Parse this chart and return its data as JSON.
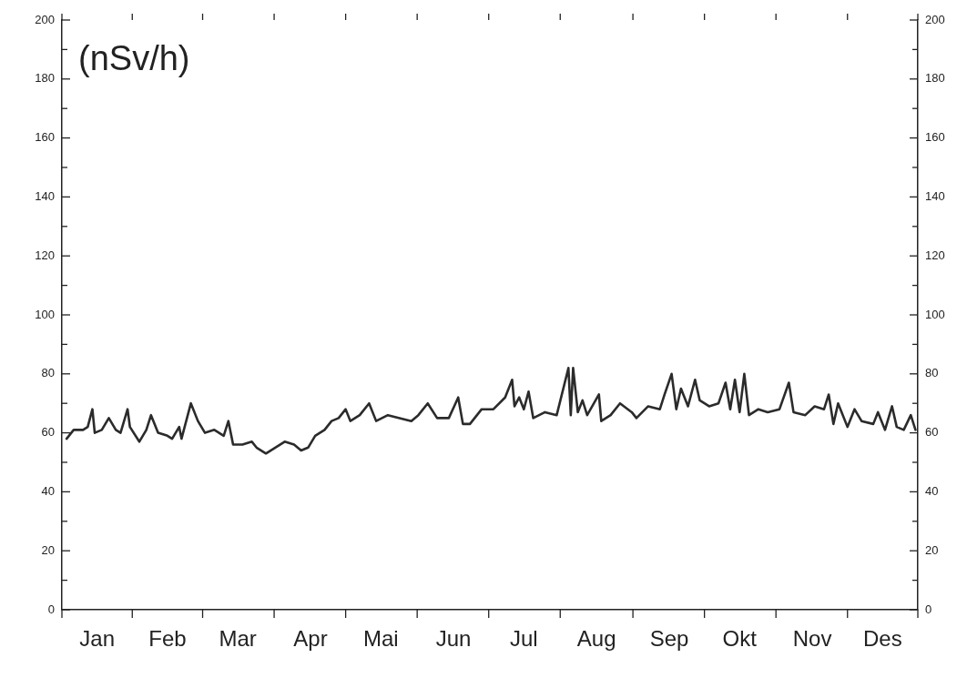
{
  "chart_data": {
    "type": "line",
    "ylabel": "(nSv/h)",
    "x": [
      "--01-03",
      "--01-06",
      "--01-10",
      "--01-12",
      "--01-14",
      "--01-15",
      "--01-18",
      "--01-21",
      "--01-24",
      "--01-26",
      "--01-29",
      "--01-30",
      "--02-03",
      "--02-06",
      "--02-08",
      "--02-11",
      "--02-15",
      "--02-17",
      "--02-20",
      "--02-21",
      "--02-25",
      "--02-28",
      "--03-02",
      "--03-06",
      "--03-10",
      "--03-12",
      "--03-14",
      "--03-18",
      "--03-22",
      "--03-24",
      "--03-28",
      "--04-01",
      "--04-05",
      "--04-09",
      "--04-12",
      "--04-15",
      "--04-18",
      "--04-22",
      "--04-25",
      "--04-28",
      "--05-01",
      "--05-03",
      "--05-05",
      "--05-07",
      "--05-11",
      "--05-14",
      "--05-19",
      "--05-24",
      "--05-29",
      "--06-01",
      "--06-05",
      "--06-09",
      "--06-14",
      "--06-18",
      "--06-20",
      "--06-23",
      "--06-28",
      "--07-03",
      "--07-08",
      "--07-11",
      "--07-12",
      "--07-14",
      "--07-16",
      "--07-18",
      "--07-20",
      "--07-25",
      "--07-30",
      "--08-04",
      "--08-05",
      "--08-06",
      "--08-08",
      "--08-10",
      "--08-12",
      "--08-17",
      "--08-18",
      "--08-22",
      "--08-26",
      "--08-31",
      "--09-02",
      "--09-07",
      "--09-12",
      "--09-14",
      "--09-17",
      "--09-19",
      "--09-21",
      "--09-24",
      "--09-27",
      "--09-29",
      "--10-03",
      "--10-07",
      "--10-10",
      "--10-12",
      "--10-14",
      "--10-16",
      "--10-18",
      "--10-20",
      "--10-24",
      "--10-28",
      "--11-02",
      "--11-06",
      "--11-08",
      "--11-13",
      "--11-17",
      "--11-21",
      "--11-23",
      "--11-25",
      "--11-27",
      "--12-01",
      "--12-04",
      "--12-07",
      "--12-12",
      "--12-14",
      "--12-17",
      "--12-20",
      "--12-22",
      "--12-25",
      "--12-28",
      "--12-30"
    ],
    "series": [
      {
        "color": "#2b2b2b",
        "values": [
          58,
          61,
          61,
          62,
          68,
          60,
          61,
          65,
          61,
          60,
          68,
          62,
          57,
          61,
          66,
          60,
          59,
          58,
          62,
          58,
          70,
          64,
          60,
          61,
          59,
          64,
          56,
          56,
          57,
          55,
          53,
          55,
          57,
          56,
          54,
          55,
          59,
          61,
          64,
          65,
          68,
          64,
          65,
          66,
          70,
          64,
          66,
          65,
          64,
          66,
          70,
          65,
          65,
          72,
          63,
          63,
          68,
          68,
          72,
          78,
          69,
          72,
          68,
          74,
          65,
          67,
          66,
          82,
          66,
          82,
          67,
          71,
          66,
          73,
          64,
          66,
          70,
          67,
          65,
          69,
          68,
          73,
          80,
          68,
          75,
          69,
          78,
          71,
          69,
          70,
          77,
          68,
          78,
          67,
          80,
          66,
          68,
          67,
          68,
          77,
          67,
          66,
          69,
          68,
          73,
          63,
          70,
          62,
          68,
          64,
          63,
          67,
          61,
          69,
          62,
          61,
          66,
          61
        ]
      }
    ],
    "xlim": [
      "--01-01",
      "--12-31"
    ],
    "xticks": [
      {
        "value": "--01-16",
        "label": "Jan"
      },
      {
        "value": "--02-15",
        "label": "Feb"
      },
      {
        "value": "--03-16",
        "label": "Mar"
      },
      {
        "value": "--04-16",
        "label": "Apr"
      },
      {
        "value": "--05-16",
        "label": "Mai"
      },
      {
        "value": "--06-16",
        "label": "Jun"
      },
      {
        "value": "--07-16",
        "label": "Jul"
      },
      {
        "value": "--08-16",
        "label": "Aug"
      },
      {
        "value": "--09-16",
        "label": "Sep"
      },
      {
        "value": "--10-16",
        "label": "Okt"
      },
      {
        "value": "--11-16",
        "label": "Nov"
      },
      {
        "value": "--12-16",
        "label": "Des"
      }
    ],
    "ylim": [
      0,
      200
    ],
    "yticks": [
      0,
      {
        "value": 10,
        "label": null
      },
      20,
      {
        "value": 30,
        "label": null
      },
      40,
      {
        "value": 50,
        "label": null
      },
      60,
      {
        "value": 70,
        "label": null
      },
      80,
      {
        "value": 90,
        "label": null
      },
      100,
      {
        "value": 110,
        "label": null
      },
      120,
      {
        "value": 130,
        "label": null
      },
      140,
      {
        "value": 150,
        "label": null
      },
      160,
      {
        "value": 170,
        "label": null
      },
      180,
      {
        "value": 190,
        "label": null
      },
      200
    ],
    "y2lim": [
      0,
      200
    ],
    "y2ticks": [
      0,
      {
        "value": 10,
        "label": null
      },
      20,
      {
        "value": 30,
        "label": null
      },
      40,
      {
        "value": 50,
        "label": null
      },
      60,
      {
        "value": 70,
        "label": null
      },
      80,
      {
        "value": 90,
        "label": null
      },
      100,
      {
        "value": 110,
        "label": null
      },
      120,
      {
        "value": 130,
        "label": null
      },
      140,
      {
        "value": 150,
        "label": null
      },
      160,
      {
        "value": 170,
        "label": null
      },
      180,
      {
        "value": 190,
        "label": null
      },
      200
    ],
    "legend": false,
    "marker": "none",
    "line_style": "solid"
  }
}
